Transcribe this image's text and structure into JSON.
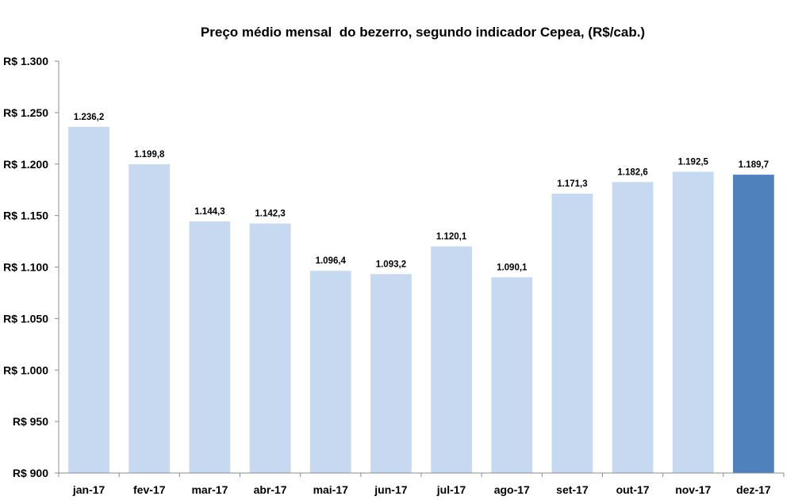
{
  "chart_data": {
    "type": "bar",
    "title": "Preço médio mensal  do bezerro, segundo indicador Cepea, (R$/cab.)",
    "xlabel": "",
    "ylabel": "",
    "categories": [
      "jan-17",
      "fev-17",
      "mar-17",
      "abr-17",
      "mai-17",
      "jun-17",
      "jul-17",
      "ago-17",
      "set-17",
      "out-17",
      "nov-17",
      "dez-17"
    ],
    "values": [
      1236.2,
      1199.8,
      1144.3,
      1142.3,
      1096.4,
      1093.2,
      1120.1,
      1090.1,
      1171.3,
      1182.6,
      1192.5,
      1189.7
    ],
    "data_labels": [
      "1.236,2",
      "1.199,8",
      "1.144,3",
      "1.142,3",
      "1.096,4",
      "1.093,2",
      "1.120,1",
      "1.090,1",
      "1.171,3",
      "1.182,6",
      "1.192,5",
      "1.189,7"
    ],
    "ylim": [
      900,
      1300
    ],
    "yticks": [
      900,
      950,
      1000,
      1050,
      1100,
      1150,
      1200,
      1250,
      1300
    ],
    "ytick_labels": [
      "R$ 900",
      "R$ 950",
      "R$ 1.000",
      "R$ 1.050",
      "R$ 1.100",
      "R$ 1.150",
      "R$ 1.200",
      "R$ 1.250",
      "R$ 1.300"
    ],
    "grid": false,
    "legend": "none",
    "colors": {
      "bar": "#c6d9f1",
      "highlight_bar": "#4f81bd",
      "axis": "#8c8c8c"
    },
    "highlight_index": 11
  }
}
